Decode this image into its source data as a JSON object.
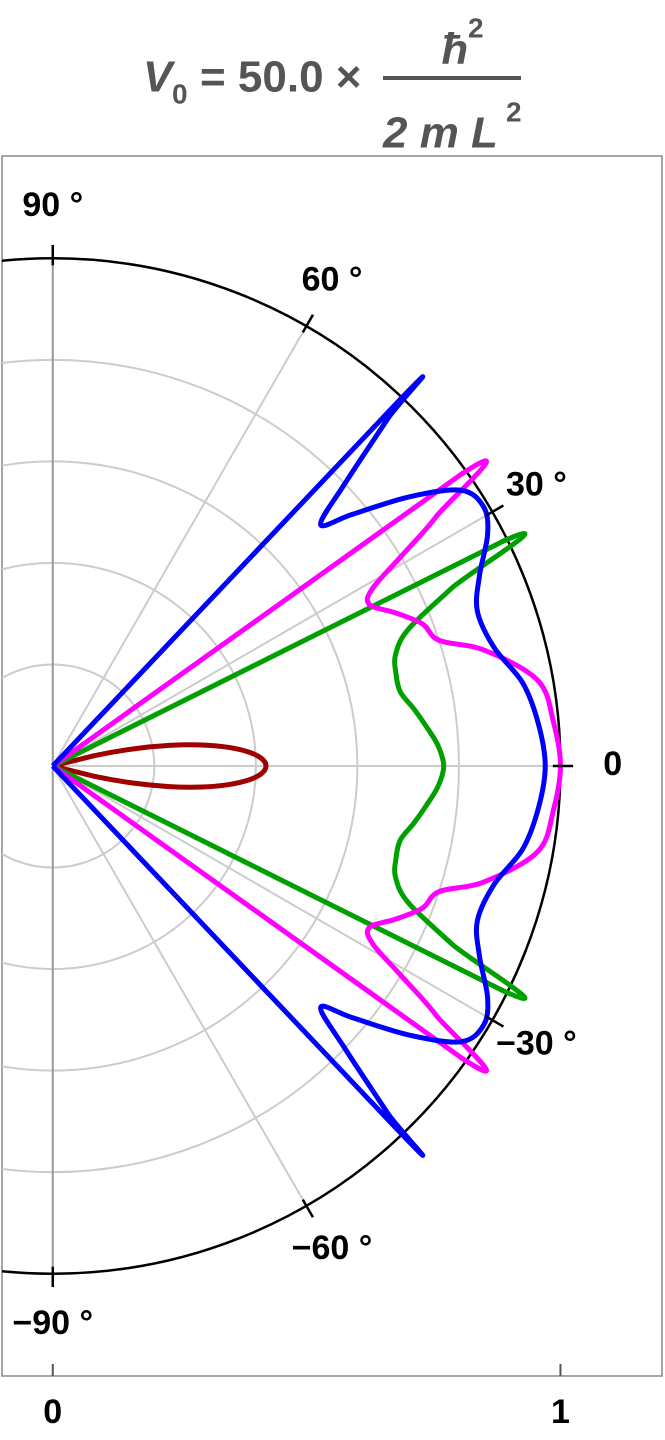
{
  "chart_data": {
    "type": "polar",
    "title": {
      "lhs": "V",
      "lhs_sub": "0",
      "mid": "= 50.0 ×",
      "num": "ħ",
      "num_sup": "2",
      "den": "2 m L",
      "den_sup": "2"
    },
    "xlim": [
      -0.1,
      1.2
    ],
    "ylim": [
      -1.2,
      1.2
    ],
    "xticks": [
      0,
      1
    ],
    "rgrid": [
      0.2,
      0.4,
      0.6,
      0.8
    ],
    "rmax": 1,
    "angle_ticks": [
      {
        "value": 90,
        "label": "90 °"
      },
      {
        "value": 60,
        "label": "60 °"
      },
      {
        "value": 30,
        "label": "30 °"
      },
      0,
      {
        "value": -30,
        "label": "−30 °"
      },
      {
        "value": -60,
        "label": "−60 °"
      },
      {
        "value": -90,
        "label": "−90 °"
      }
    ],
    "grid": true,
    "series": [
      {
        "color": "#a00000",
        "theta": [
          -16,
          -14,
          -12,
          -10,
          -8,
          -6,
          -4,
          -2,
          0,
          2,
          4,
          6,
          8,
          10,
          12,
          14,
          16
        ],
        "r": [
          0,
          0.082,
          0.161,
          0.233,
          0.297,
          0.349,
          0.388,
          0.412,
          0.42,
          0.412,
          0.388,
          0.349,
          0.297,
          0.233,
          0.161,
          0.082,
          0
        ]
      },
      {
        "color": "#00a000",
        "theta": [
          -27,
          -26.5,
          -24,
          -21,
          -18,
          -15,
          -12,
          -9,
          -6,
          -3,
          0,
          3,
          6,
          9,
          12,
          15,
          18,
          21,
          24,
          26.5,
          27
        ],
        "r": [
          0,
          0.99,
          0.86,
          0.75,
          0.71,
          0.7,
          0.7,
          0.72,
          0.74,
          0.76,
          0.77,
          0.76,
          0.74,
          0.72,
          0.7,
          0.7,
          0.71,
          0.75,
          0.86,
          0.99,
          0
        ]
      },
      {
        "color": "#ff00ff",
        "theta": [
          -36,
          -35.5,
          -33,
          -31,
          -29,
          -27,
          -24,
          -21,
          -18,
          -15,
          -10,
          -5,
          0,
          5,
          10,
          15,
          18,
          21,
          24,
          27,
          29,
          31,
          33,
          35.5,
          36
        ],
        "r": [
          0,
          0.99,
          0.9,
          0.8,
          0.72,
          0.7,
          0.74,
          0.78,
          0.8,
          0.88,
          0.97,
          0.99,
          1.0,
          0.99,
          0.97,
          0.88,
          0.8,
          0.78,
          0.74,
          0.7,
          0.72,
          0.8,
          0.9,
          0.99,
          0
        ]
      },
      {
        "color": "#0000ff",
        "theta": [
          -47,
          -46.5,
          -46,
          -44,
          -42,
          -40,
          -37,
          -34,
          -31,
          -28,
          -24,
          -20,
          -15,
          -10,
          -5,
          0,
          5,
          10,
          15,
          20,
          24,
          28,
          31,
          34,
          37,
          40,
          42,
          44,
          46,
          46.5,
          47
        ],
        "r": [
          0,
          0.99,
          0.95,
          0.8,
          0.71,
          0.77,
          0.88,
          0.97,
          0.99,
          0.97,
          0.92,
          0.89,
          0.9,
          0.94,
          0.96,
          0.97,
          0.96,
          0.94,
          0.9,
          0.89,
          0.92,
          0.97,
          0.99,
          0.97,
          0.88,
          0.77,
          0.71,
          0.8,
          0.95,
          0.99,
          0
        ]
      }
    ]
  }
}
